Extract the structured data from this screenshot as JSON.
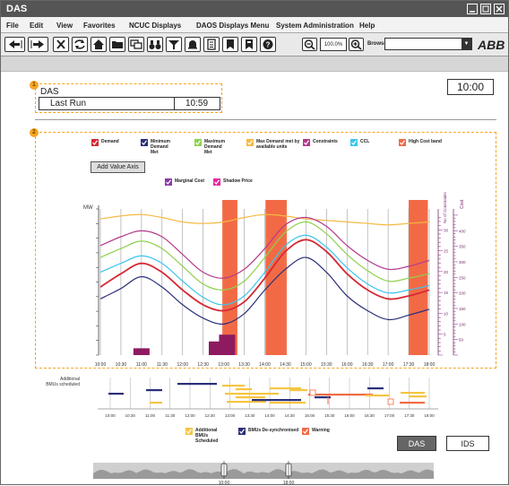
{
  "window": {
    "title": "DAS"
  },
  "menu": [
    "File",
    "Edit",
    "View",
    "Favorites",
    "NCUC Displays",
    "DAOS Displays Menu",
    "System Administration",
    "Help"
  ],
  "toolbar": {
    "icons": [
      "back-icon",
      "forward-icon",
      "close-icon",
      "refresh-icon",
      "home-icon",
      "folder-icon",
      "windows-icon",
      "binoculars-icon",
      "filter-icon",
      "bell-icon",
      "document-icon",
      "bookmark-icon",
      "bookmark2-icon",
      "help-icon",
      "zoom-out-icon",
      "zoom-in-icon"
    ],
    "zoom_value": "100.0%",
    "browse_label": "Browse",
    "logo_text": "ABB"
  },
  "panel1": {
    "badge": "1",
    "title": "DAS",
    "last_run_label": "Last Run",
    "last_run_value": "10:59"
  },
  "clock": "10:00",
  "panel2": {
    "badge": "2",
    "legend": [
      {
        "label": "Demand",
        "color": "#d62a35"
      },
      {
        "label": "Minimum Demand Met",
        "color": "#2b2f7a"
      },
      {
        "label": "Maximum Demand Met",
        "color": "#8fd14f"
      },
      {
        "label": "Max Demand met by available units",
        "color": "#f5b942"
      },
      {
        "label": "Constraints",
        "color": "#b43a8c"
      },
      {
        "label": "CCL",
        "color": "#3ec3ee"
      },
      {
        "label": "High Cost band",
        "color": "#f26a45"
      }
    ],
    "legend2": [
      {
        "label": "Marginal Cost",
        "color": "#8a3aa8"
      },
      {
        "label": "Shadow Price",
        "color": "#e8279b"
      }
    ],
    "add_axis_label": "Add Value Axis"
  },
  "chart_data": {
    "type": "line",
    "ylabel": "MW",
    "right_axis_labels": [
      "No of Constraints",
      "Cost"
    ],
    "x_ticks": [
      "10:00",
      "10:30",
      "11:00",
      "11:30",
      "12:00",
      "12:30",
      "13:00",
      "13:30",
      "14:00",
      "14:30",
      "15:00",
      "15:30",
      "16:00",
      "16:30",
      "17:00",
      "17:30",
      "18:00"
    ],
    "cost_ticks": [
      50,
      100,
      150,
      200,
      250,
      300,
      350,
      400
    ],
    "constraint_ticks": [
      5,
      10,
      15,
      20,
      25,
      30
    ],
    "high_cost_bands": [
      [
        "12:58",
        "13:20"
      ],
      [
        "14:01",
        "14:32"
      ],
      [
        "17:30",
        "17:58"
      ]
    ],
    "series": [
      {
        "name": "Max Demand met by available units",
        "values": [
          92,
          94,
          95,
          93,
          90,
          89,
          90,
          93,
          95,
          94,
          92,
          91,
          90,
          89,
          88,
          89,
          90
        ]
      },
      {
        "name": "Constraints",
        "values": [
          74,
          80,
          84,
          80,
          68,
          56,
          52,
          58,
          72,
          88,
          93,
          87,
          74,
          64,
          58,
          60,
          64
        ]
      },
      {
        "name": "Maximum Demand Met",
        "values": [
          66,
          72,
          77,
          72,
          60,
          48,
          44,
          50,
          66,
          83,
          90,
          82,
          68,
          57,
          50,
          52,
          55
        ]
      },
      {
        "name": "CCL",
        "values": [
          56,
          62,
          67,
          62,
          50,
          39,
          34,
          40,
          56,
          74,
          81,
          73,
          59,
          48,
          42,
          44,
          47
        ]
      },
      {
        "name": "Demand",
        "values": [
          46,
          55,
          62,
          56,
          44,
          34,
          30,
          36,
          52,
          70,
          78,
          70,
          55,
          44,
          38,
          40,
          44
        ]
      },
      {
        "name": "Minimum Demand Met",
        "values": [
          38,
          45,
          53,
          46,
          34,
          25,
          21,
          28,
          44,
          58,
          66,
          56,
          40,
          30,
          24,
          27,
          31
        ]
      }
    ],
    "constraint_bars": [
      {
        "x": "11:00",
        "value": 2
      },
      {
        "x": "12:50",
        "value": 4
      },
      {
        "x": "13:05",
        "value": 6
      }
    ]
  },
  "timeline": {
    "label": "Additional BMUs scheduled",
    "x_ticks": [
      "10:00",
      "10:30",
      "11:00",
      "11:30",
      "12:00",
      "12:30",
      "13:00",
      "13:30",
      "14:00",
      "14:30",
      "15:00",
      "15:30",
      "16:00",
      "16:30",
      "17:00",
      "17:30",
      "18:00"
    ],
    "legend": [
      {
        "label": "Additional BMUs Scheduled",
        "color": "#f5c542"
      },
      {
        "label": "BMUs De-synchronised",
        "color": "#2b2f7a"
      },
      {
        "label": "Warning",
        "color": "#f26a45"
      }
    ]
  },
  "buttons": {
    "das": "DAS",
    "ids": "IDS"
  },
  "overview": {
    "labels": [
      "10:00",
      "18:00"
    ]
  }
}
